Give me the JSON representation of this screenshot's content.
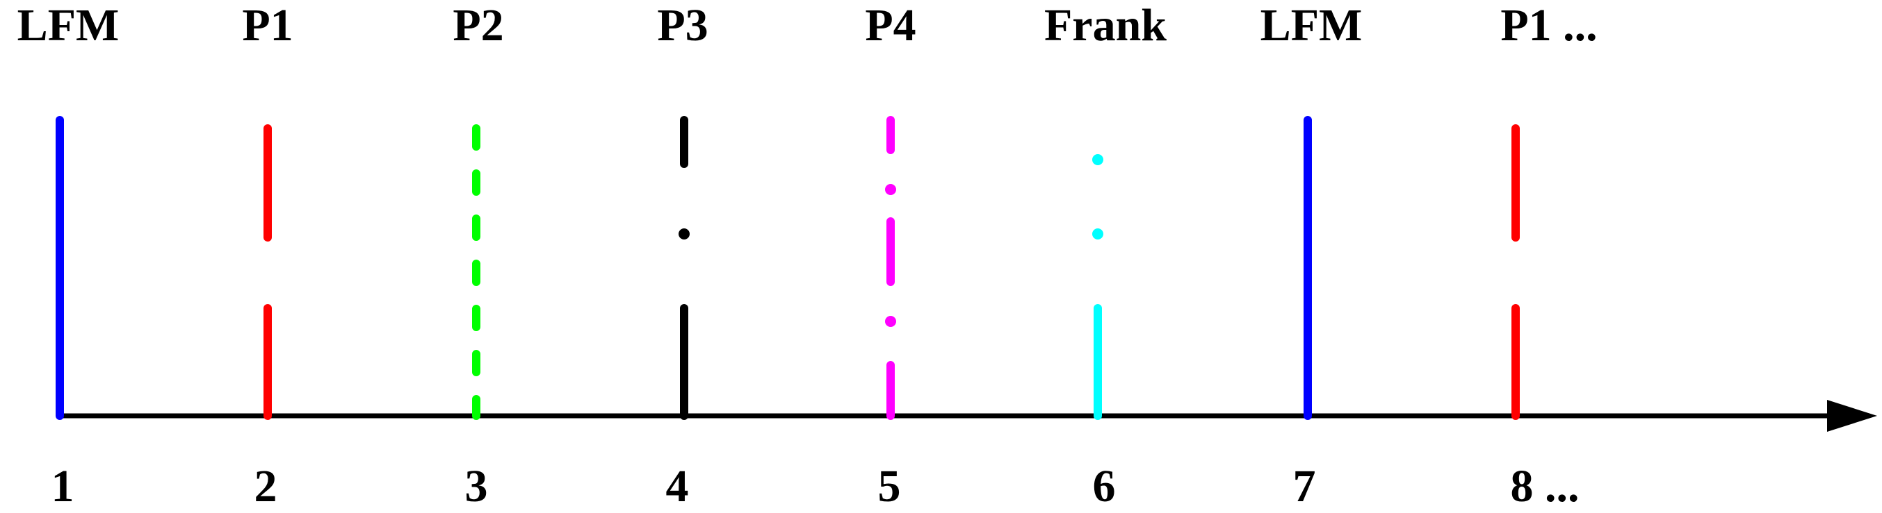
{
  "top_labels": [
    "LFM",
    "P1",
    "P2",
    "P3",
    "P4",
    "Frank",
    "LFM",
    "P1 ..."
  ],
  "bottom_labels": [
    "1",
    "2",
    "3",
    "4",
    "5",
    "6",
    "7",
    "8 ..."
  ]
}
